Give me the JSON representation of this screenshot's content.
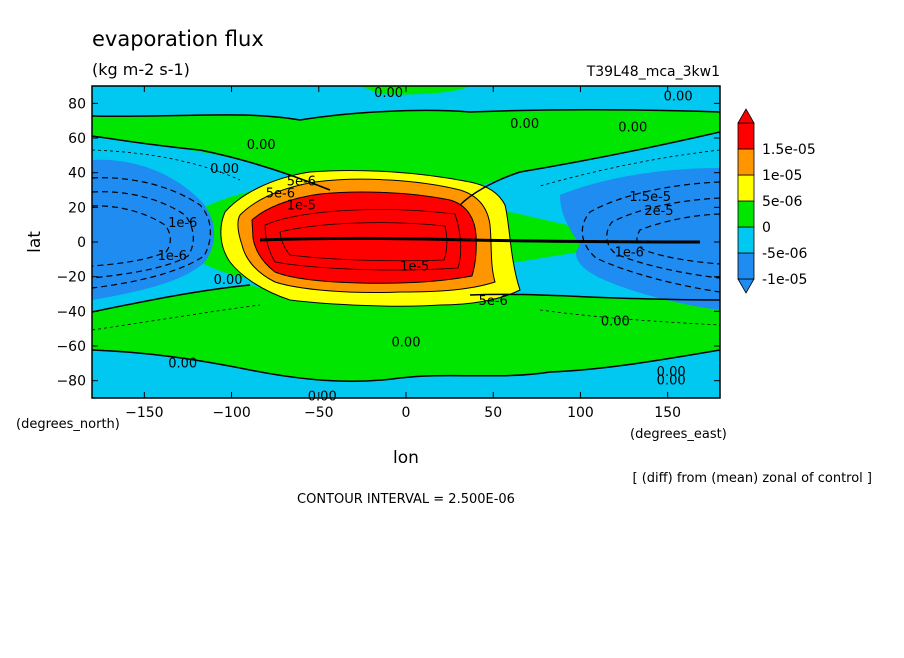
{
  "chart_data": {
    "type": "heatmap",
    "title": "evaporation flux",
    "units": "(kg m-2 s-1)",
    "run_label": "T39L48_mca_3kw1",
    "xlabel": "lon",
    "ylabel": "lat",
    "x_unit_label": "(degrees_east)",
    "y_unit_label": "(degrees_north)",
    "xlim": [
      -180,
      180
    ],
    "ylim": [
      -90,
      90
    ],
    "x_ticks": [
      -150,
      -100,
      -50,
      0,
      50,
      100,
      150
    ],
    "x_tick_labels": [
      "−150",
      "−100",
      "−50",
      "0",
      "50",
      "100",
      "150"
    ],
    "y_ticks": [
      80,
      60,
      40,
      20,
      0,
      -20,
      -40,
      -60,
      -80
    ],
    "y_tick_labels": [
      "80",
      "60",
      "40",
      "20",
      "0",
      "−20",
      "−40",
      "−60",
      "−80"
    ],
    "note": "[ (diff) from (mean) zonal of control ]",
    "contour_interval_text": "CONTOUR INTERVAL = 2.500E-06",
    "colorbar": {
      "orientation": "vertical",
      "placement": "right",
      "labels": [
        "1.5e-05",
        "1e-05",
        "5e-06",
        "0",
        "-5e-06",
        "-1e-05"
      ],
      "colors": [
        "#1e8cf0",
        "#00c8f0",
        "#00e600",
        "#ffff00",
        "#ff9600",
        "#ff0000"
      ]
    },
    "contour_labels": [
      {
        "text": "0.00",
        "lon": -10,
        "lat": 86
      },
      {
        "text": "0.00",
        "lon": 156,
        "lat": 84
      },
      {
        "text": "0.00",
        "lon": 68,
        "lat": 68
      },
      {
        "text": "0.00",
        "lon": 130,
        "lat": 66
      },
      {
        "text": "0.00",
        "lon": -83,
        "lat": 56
      },
      {
        "text": "0.00",
        "lon": -104,
        "lat": 42
      },
      {
        "text": "5e-6",
        "lon": -60,
        "lat": 35
      },
      {
        "text": "5e-6",
        "lon": -72,
        "lat": 28
      },
      {
        "text": "1e-5",
        "lon": -60,
        "lat": 21
      },
      {
        "text": "1.5e-5",
        "lon": 140,
        "lat": 26
      },
      {
        "text": "2e-5",
        "lon": 145,
        "lat": 18
      },
      {
        "text": "1e-6",
        "lon": -128,
        "lat": 11
      },
      {
        "text": "1e-6",
        "lon": -134,
        "lat": -8
      },
      {
        "text": "1e-6",
        "lon": 128,
        "lat": -6
      },
      {
        "text": "1e-5",
        "lon": 5,
        "lat": -14
      },
      {
        "text": "0.00",
        "lon": -102,
        "lat": -22
      },
      {
        "text": "5e-6",
        "lon": 50,
        "lat": -34
      },
      {
        "text": "0.00",
        "lon": 120,
        "lat": -46
      },
      {
        "text": "0.00",
        "lon": 0,
        "lat": -58
      },
      {
        "text": "0.00",
        "lon": -128,
        "lat": -70
      },
      {
        "text": "0.00",
        "lon": 152,
        "lat": -75
      },
      {
        "text": "0.00",
        "lon": 152,
        "lat": -80
      },
      {
        "text": "0.00",
        "lon": -48,
        "lat": -89
      }
    ]
  }
}
